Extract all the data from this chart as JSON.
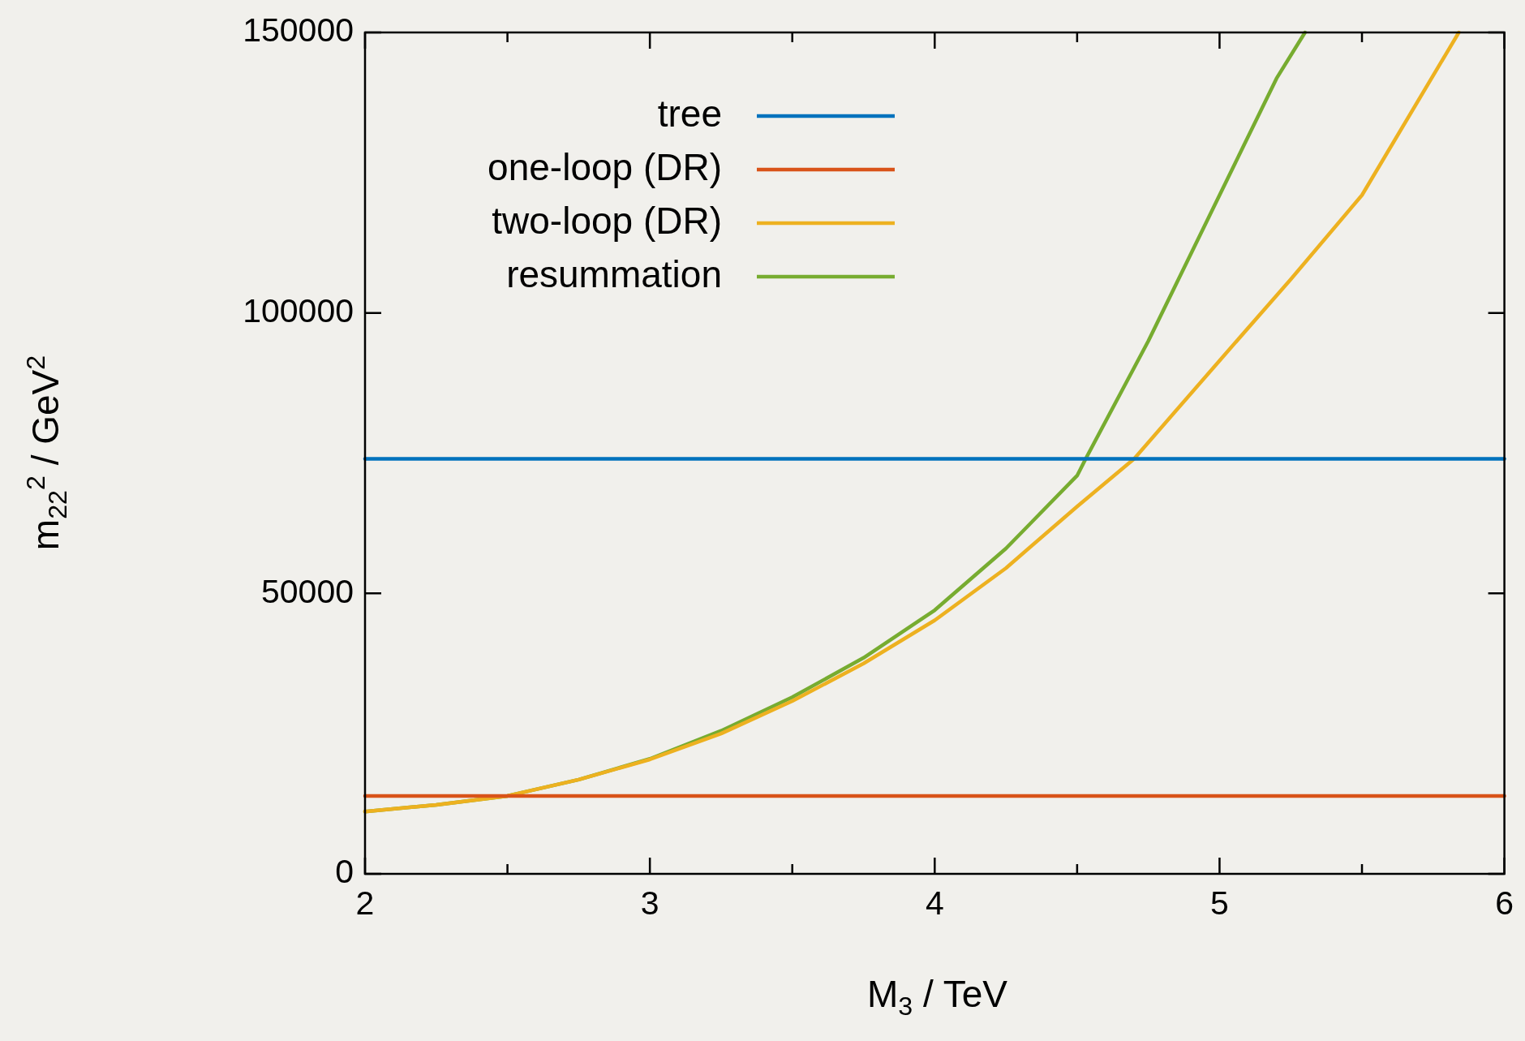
{
  "chart_data": {
    "type": "line",
    "xlabel": "M$_{3}$ / TeV",
    "ylabel": "m$_{22}$$^{2}$ / GeV$^{2}$",
    "xlim": [
      2,
      6
    ],
    "xticks": [
      2,
      {
        "value": 2.5,
        "label": null
      },
      3,
      {
        "value": 3.5,
        "label": null
      },
      4,
      {
        "value": 4.5,
        "label": null
      },
      5,
      {
        "value": 5.5,
        "label": null
      },
      6
    ],
    "ylim": [
      0,
      150000
    ],
    "yticks": [
      0,
      50000,
      100000,
      150000
    ],
    "grid": false,
    "legend": "top left",
    "marker": "none",
    "line_style": "solid",
    "series": [
      {
        "name": "tree",
        "color": "#0072bd",
        "x": [
          2,
          6
        ],
        "values": [
          74000,
          74000
        ]
      },
      {
        "name": "one-loop (DR)",
        "color": "#d95319",
        "x": [
          2,
          6
        ],
        "values": [
          13900,
          13900
        ]
      },
      {
        "name": "two-loop (DR)",
        "color": "#edb120",
        "x": [
          2,
          2.25,
          2.5,
          2.75,
          3,
          3.25,
          3.5,
          3.75,
          4,
          4.25,
          4.5,
          4.7,
          5,
          5.25,
          5.5,
          5.84
        ],
        "values": [
          11100,
          12300,
          13900,
          16800,
          20400,
          25000,
          30800,
          37500,
          45200,
          54500,
          65500,
          74000,
          91500,
          106000,
          121000,
          150000
        ]
      },
      {
        "name": "resummation",
        "color": "#77ac30",
        "x": [
          2,
          2.25,
          2.5,
          2.75,
          3,
          3.25,
          3.5,
          3.75,
          4,
          4.25,
          4.5,
          4.53,
          4.75,
          5,
          5.2,
          5.3
        ],
        "values": [
          11100,
          12300,
          13900,
          16800,
          20500,
          25500,
          31500,
          38500,
          47000,
          58000,
          71000,
          74000,
          95000,
          121000,
          141800,
          150000
        ]
      }
    ]
  }
}
